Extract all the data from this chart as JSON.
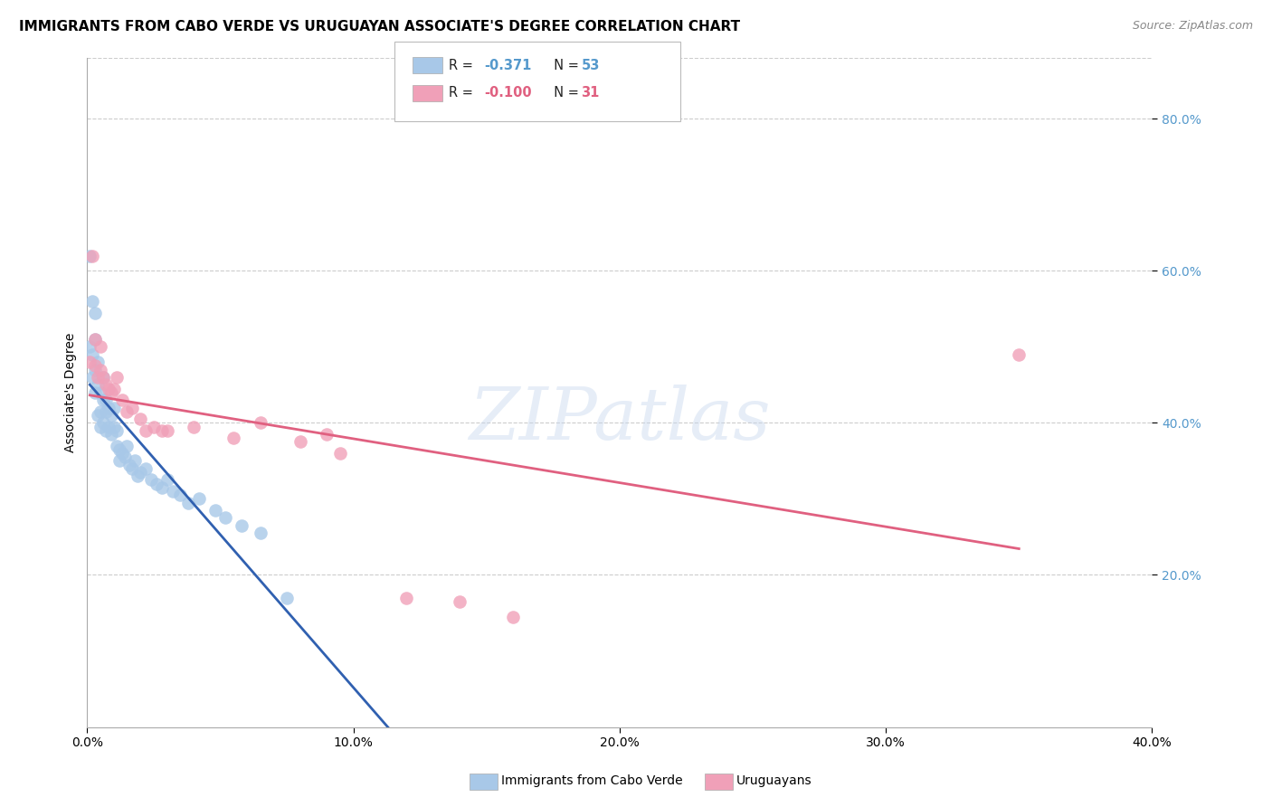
{
  "title": "IMMIGRANTS FROM CABO VERDE VS URUGUAYAN ASSOCIATE'S DEGREE CORRELATION CHART",
  "source": "Source: ZipAtlas.com",
  "ylabel": "Associate's Degree",
  "blue_label": "Immigrants from Cabo Verde",
  "pink_label": "Uruguayans",
  "blue_R": -0.371,
  "blue_N": 53,
  "pink_R": -0.1,
  "pink_N": 31,
  "xlim": [
    0.0,
    0.4
  ],
  "ylim": [
    0.0,
    0.88
  ],
  "yticks": [
    0.2,
    0.4,
    0.6,
    0.8
  ],
  "xticks": [
    0.0,
    0.1,
    0.2,
    0.3,
    0.4
  ],
  "blue_color": "#a8c8e8",
  "pink_color": "#f0a0b8",
  "blue_line_color": "#3060b0",
  "pink_line_color": "#e06080",
  "background_color": "#ffffff",
  "grid_color": "#cccccc",
  "watermark": "ZIPatlas",
  "blue_x": [
    0.001,
    0.001,
    0.002,
    0.002,
    0.002,
    0.003,
    0.003,
    0.003,
    0.003,
    0.004,
    0.004,
    0.004,
    0.005,
    0.005,
    0.005,
    0.006,
    0.006,
    0.006,
    0.007,
    0.007,
    0.007,
    0.008,
    0.008,
    0.009,
    0.009,
    0.01,
    0.01,
    0.011,
    0.011,
    0.012,
    0.012,
    0.013,
    0.014,
    0.015,
    0.016,
    0.017,
    0.018,
    0.019,
    0.02,
    0.022,
    0.024,
    0.026,
    0.028,
    0.03,
    0.032,
    0.035,
    0.038,
    0.042,
    0.048,
    0.052,
    0.058,
    0.065,
    0.075
  ],
  "blue_y": [
    0.62,
    0.5,
    0.56,
    0.49,
    0.46,
    0.545,
    0.51,
    0.47,
    0.44,
    0.48,
    0.45,
    0.41,
    0.44,
    0.415,
    0.395,
    0.46,
    0.43,
    0.4,
    0.43,
    0.415,
    0.39,
    0.42,
    0.395,
    0.41,
    0.385,
    0.42,
    0.395,
    0.39,
    0.37,
    0.365,
    0.35,
    0.36,
    0.355,
    0.37,
    0.345,
    0.34,
    0.35,
    0.33,
    0.335,
    0.34,
    0.325,
    0.32,
    0.315,
    0.325,
    0.31,
    0.305,
    0.295,
    0.3,
    0.285,
    0.275,
    0.265,
    0.255,
    0.17
  ],
  "pink_x": [
    0.001,
    0.002,
    0.003,
    0.003,
    0.004,
    0.005,
    0.005,
    0.006,
    0.007,
    0.008,
    0.009,
    0.01,
    0.011,
    0.013,
    0.015,
    0.017,
    0.02,
    0.022,
    0.025,
    0.028,
    0.03,
    0.04,
    0.055,
    0.065,
    0.08,
    0.09,
    0.095,
    0.12,
    0.14,
    0.16,
    0.35
  ],
  "pink_y": [
    0.48,
    0.62,
    0.51,
    0.475,
    0.46,
    0.5,
    0.47,
    0.46,
    0.45,
    0.445,
    0.44,
    0.445,
    0.46,
    0.43,
    0.415,
    0.42,
    0.405,
    0.39,
    0.395,
    0.39,
    0.39,
    0.395,
    0.38,
    0.4,
    0.375,
    0.385,
    0.36,
    0.17,
    0.165,
    0.145,
    0.49
  ],
  "blue_line_x0": 0.001,
  "blue_line_x_solid_end": 0.13,
  "blue_line_x1": 0.4,
  "pink_line_x0": 0.001,
  "pink_line_x1": 0.35,
  "title_fontsize": 11,
  "axis_label_fontsize": 10,
  "tick_fontsize": 10,
  "legend_fontsize": 10,
  "source_fontsize": 9
}
